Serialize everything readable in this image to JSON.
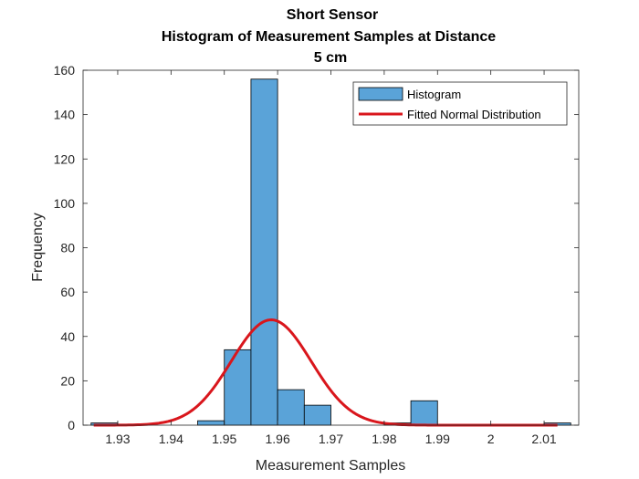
{
  "chart_data": {
    "type": "bar",
    "title_lines": [
      "Short Sensor",
      "Histogram of Measurement Samples at Distance",
      "5 cm"
    ],
    "xlabel": "Measurement Samples",
    "ylabel": "Frequency",
    "xlim": [
      1.9235,
      2.0165
    ],
    "ylim": [
      0,
      160
    ],
    "xticks": [
      1.93,
      1.94,
      1.95,
      1.96,
      1.97,
      1.98,
      1.99,
      2.0,
      2.01
    ],
    "xtick_labels": [
      "1.93",
      "1.94",
      "1.95",
      "1.96",
      "1.97",
      "1.98",
      "1.99",
      "2",
      "2.01"
    ],
    "yticks": [
      0,
      20,
      40,
      60,
      80,
      100,
      120,
      140,
      160
    ],
    "ytick_labels": [
      "0",
      "20",
      "40",
      "60",
      "80",
      "100",
      "120",
      "140",
      "160"
    ],
    "grid": false,
    "legend_position": "top-right",
    "series": [
      {
        "name": "Histogram",
        "kind": "histogram",
        "color": "#5aa3d8",
        "edge_color": "#000000",
        "bins": [
          {
            "x0": 1.925,
            "x1": 1.93,
            "count": 1
          },
          {
            "x0": 1.945,
            "x1": 1.95,
            "count": 2
          },
          {
            "x0": 1.95,
            "x1": 1.955,
            "count": 34
          },
          {
            "x0": 1.955,
            "x1": 1.96,
            "count": 156
          },
          {
            "x0": 1.96,
            "x1": 1.965,
            "count": 16
          },
          {
            "x0": 1.965,
            "x1": 1.97,
            "count": 9
          },
          {
            "x0": 1.98,
            "x1": 1.985,
            "count": 1
          },
          {
            "x0": 1.985,
            "x1": 1.99,
            "count": 11
          },
          {
            "x0": 2.01,
            "x1": 2.015,
            "count": 1
          }
        ]
      },
      {
        "name": "Fitted Normal Distribution",
        "kind": "line",
        "color": "#d9161c",
        "mean": 1.9588,
        "std": 0.0075,
        "peak": 47.5,
        "x_range": [
          1.9255,
          2.0125
        ]
      }
    ]
  }
}
